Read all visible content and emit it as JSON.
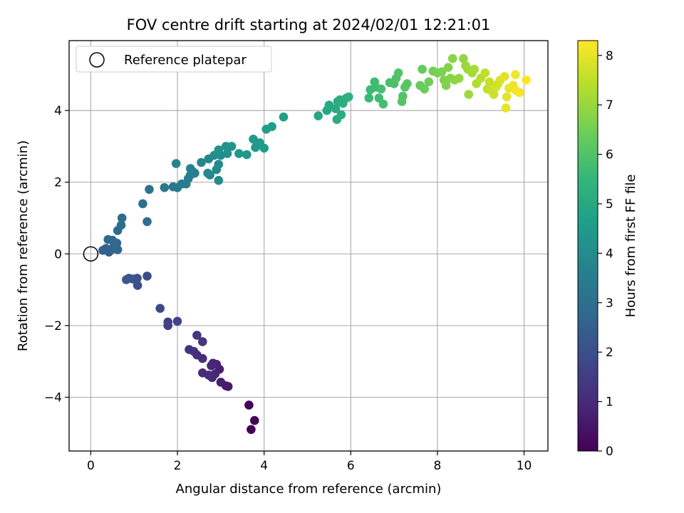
{
  "chart_data": {
    "type": "scatter",
    "title": "FOV centre drift starting at 2024/02/01 12:21:01",
    "xlabel": "Angular distance from reference (arcmin)",
    "ylabel": "Rotation from reference (arcmin)",
    "xlim": [
      -0.5,
      10.55
    ],
    "ylim": [
      -5.5,
      5.95
    ],
    "xticks": [
      0,
      2,
      4,
      6,
      8,
      10
    ],
    "xtick_labels": [
      "0",
      "2",
      "4",
      "6",
      "8",
      "10"
    ],
    "yticks": [
      -4,
      -2,
      0,
      2,
      4
    ],
    "ytick_labels": [
      "−4",
      "−2",
      "0",
      "2",
      "4"
    ],
    "grid": true,
    "legend": {
      "position": "top-left",
      "entries": [
        {
          "label": "Reference platepar",
          "marker": "open-circle",
          "x": 0,
          "y": 0
        }
      ]
    },
    "colorbar": {
      "label": "Hours from first FF file",
      "colormap": "viridis",
      "range": [
        0,
        8.3
      ],
      "ticks": [
        0,
        1,
        2,
        3,
        4,
        5,
        6,
        7,
        8
      ],
      "tick_labels": [
        "0",
        "1",
        "2",
        "3",
        "4",
        "5",
        "6",
        "7",
        "8"
      ],
      "colors": [
        "#440154",
        "#482878",
        "#3e4989",
        "#31688e",
        "#26828e",
        "#1f9e89",
        "#35b779",
        "#6ece58",
        "#b5de2b",
        "#fde725"
      ]
    },
    "series": [
      {
        "points": [
          [
            3.65,
            -4.22,
            0.05
          ],
          [
            3.78,
            -4.65,
            0.05
          ],
          [
            3.7,
            -4.9,
            0.0
          ],
          [
            3.17,
            -3.7,
            0.6
          ],
          [
            3.12,
            -3.68,
            0.65
          ],
          [
            3.0,
            -3.58,
            0.7
          ],
          [
            2.97,
            -3.22,
            0.75
          ],
          [
            2.9,
            -3.08,
            0.8
          ],
          [
            2.82,
            -3.05,
            0.85
          ],
          [
            2.78,
            -3.12,
            0.9
          ],
          [
            2.87,
            -3.35,
            0.9
          ],
          [
            2.8,
            -3.45,
            0.95
          ],
          [
            2.72,
            -3.38,
            1.0
          ],
          [
            2.58,
            -3.32,
            1.0
          ],
          [
            2.58,
            -2.92,
            1.05
          ],
          [
            2.45,
            -2.82,
            1.1
          ],
          [
            2.38,
            -2.72,
            1.15
          ],
          [
            2.27,
            -2.67,
            1.2
          ],
          [
            2.58,
            -2.45,
            1.3
          ],
          [
            2.45,
            -2.27,
            1.35
          ],
          [
            1.78,
            -2.0,
            1.6
          ],
          [
            1.78,
            -1.9,
            1.65
          ],
          [
            2.0,
            -1.88,
            1.7
          ],
          [
            1.6,
            -1.52,
            1.8
          ],
          [
            1.3,
            -0.62,
            2.0
          ],
          [
            1.08,
            -0.88,
            2.05
          ],
          [
            1.07,
            -0.68,
            2.1
          ],
          [
            0.97,
            -0.7,
            2.15
          ],
          [
            0.88,
            -0.68,
            2.2
          ],
          [
            0.82,
            -0.72,
            2.25
          ],
          [
            0.28,
            0.1,
            2.55
          ],
          [
            0.35,
            0.15,
            2.6
          ],
          [
            0.42,
            0.05,
            2.6
          ],
          [
            0.48,
            0.12,
            2.65
          ],
          [
            0.52,
            0.18,
            2.7
          ],
          [
            0.62,
            0.12,
            2.7
          ],
          [
            0.6,
            0.3,
            2.75
          ],
          [
            0.4,
            0.4,
            2.8
          ],
          [
            0.5,
            0.38,
            2.8
          ],
          [
            0.62,
            0.65,
            2.85
          ],
          [
            0.7,
            0.8,
            2.9
          ],
          [
            0.72,
            1.0,
            2.9
          ],
          [
            1.3,
            0.9,
            3.0
          ],
          [
            1.2,
            1.4,
            3.0
          ],
          [
            1.35,
            1.8,
            3.2
          ],
          [
            1.7,
            1.85,
            3.3
          ],
          [
            1.9,
            1.87,
            3.35
          ],
          [
            2.0,
            1.85,
            3.4
          ],
          [
            2.1,
            1.95,
            3.45
          ],
          [
            2.2,
            1.95,
            3.5
          ],
          [
            2.25,
            2.1,
            3.5
          ],
          [
            2.3,
            2.2,
            3.55
          ],
          [
            2.35,
            2.3,
            3.6
          ],
          [
            2.4,
            2.25,
            3.6
          ],
          [
            2.3,
            2.38,
            3.65
          ],
          [
            1.97,
            2.52,
            3.7
          ],
          [
            2.55,
            2.55,
            3.8
          ],
          [
            2.72,
            2.65,
            3.85
          ],
          [
            2.7,
            2.25,
            3.85
          ],
          [
            2.75,
            2.2,
            3.9
          ],
          [
            2.9,
            2.35,
            3.95
          ],
          [
            2.95,
            2.05,
            3.95
          ],
          [
            2.95,
            2.5,
            4.0
          ],
          [
            2.85,
            2.75,
            4.05
          ],
          [
            3.0,
            2.75,
            4.1
          ],
          [
            3.15,
            2.8,
            4.15
          ],
          [
            2.95,
            2.9,
            4.2
          ],
          [
            3.12,
            3.0,
            4.25
          ],
          [
            3.25,
            3.0,
            4.3
          ],
          [
            3.42,
            2.8,
            4.35
          ],
          [
            3.6,
            2.77,
            4.4
          ],
          [
            3.8,
            2.97,
            4.45
          ],
          [
            3.75,
            3.2,
            4.5
          ],
          [
            3.9,
            3.1,
            4.5
          ],
          [
            4.0,
            2.95,
            4.55
          ],
          [
            4.05,
            3.48,
            4.6
          ],
          [
            4.18,
            3.55,
            4.65
          ],
          [
            4.45,
            3.82,
            4.7
          ],
          [
            5.25,
            3.85,
            4.9
          ],
          [
            5.45,
            4.0,
            4.95
          ],
          [
            5.5,
            4.15,
            5.0
          ],
          [
            5.65,
            4.05,
            5.05
          ],
          [
            5.7,
            4.25,
            5.05
          ],
          [
            5.75,
            4.3,
            5.1
          ],
          [
            5.68,
            3.75,
            5.1
          ],
          [
            5.78,
            3.88,
            5.15
          ],
          [
            5.82,
            4.2,
            5.2
          ],
          [
            5.9,
            4.35,
            5.25
          ],
          [
            5.95,
            4.38,
            5.3
          ],
          [
            6.42,
            4.35,
            5.6
          ],
          [
            6.45,
            4.58,
            5.65
          ],
          [
            6.58,
            4.65,
            5.7
          ],
          [
            6.55,
            4.8,
            5.7
          ],
          [
            6.65,
            4.35,
            5.75
          ],
          [
            6.75,
            4.18,
            5.8
          ],
          [
            6.7,
            4.6,
            5.8
          ],
          [
            6.9,
            4.78,
            5.85
          ],
          [
            7.0,
            4.75,
            5.9
          ],
          [
            7.05,
            4.9,
            5.95
          ],
          [
            7.1,
            5.05,
            6.0
          ],
          [
            7.2,
            4.4,
            6.0
          ],
          [
            7.18,
            4.25,
            6.05
          ],
          [
            7.25,
            4.65,
            6.1
          ],
          [
            7.3,
            4.75,
            6.1
          ],
          [
            7.6,
            4.7,
            6.3
          ],
          [
            7.65,
            5.15,
            6.35
          ],
          [
            7.7,
            4.6,
            6.4
          ],
          [
            7.8,
            4.8,
            6.45
          ],
          [
            7.9,
            5.1,
            6.5
          ],
          [
            8.0,
            5.05,
            6.55
          ],
          [
            8.1,
            5.08,
            6.6
          ],
          [
            8.15,
            4.85,
            6.65
          ],
          [
            8.2,
            4.7,
            6.7
          ],
          [
            8.25,
            5.2,
            6.7
          ],
          [
            8.3,
            4.9,
            6.75
          ],
          [
            8.35,
            5.45,
            6.8
          ],
          [
            8.4,
            4.85,
            6.85
          ],
          [
            8.5,
            4.9,
            6.9
          ],
          [
            8.6,
            5.45,
            6.95
          ],
          [
            8.65,
            5.25,
            7.0
          ],
          [
            8.7,
            5.15,
            7.05
          ],
          [
            8.72,
            4.45,
            7.1
          ],
          [
            8.8,
            5.05,
            7.15
          ],
          [
            8.85,
            5.15,
            7.2
          ],
          [
            8.9,
            4.75,
            7.3
          ],
          [
            9.0,
            4.9,
            7.4
          ],
          [
            9.1,
            5.05,
            7.5
          ],
          [
            9.15,
            4.6,
            7.55
          ],
          [
            9.2,
            4.8,
            7.6
          ],
          [
            9.25,
            4.55,
            7.65
          ],
          [
            9.3,
            4.45,
            7.7
          ],
          [
            9.35,
            4.65,
            7.75
          ],
          [
            9.4,
            4.75,
            7.8
          ],
          [
            9.45,
            4.85,
            7.85
          ],
          [
            9.55,
            4.95,
            7.9
          ],
          [
            9.6,
            4.38,
            7.95
          ],
          [
            9.58,
            4.07,
            8.0
          ],
          [
            9.65,
            4.62,
            8.05
          ],
          [
            9.75,
            4.7,
            8.1
          ],
          [
            9.8,
            5.0,
            8.15
          ],
          [
            9.82,
            4.55,
            8.2
          ],
          [
            9.9,
            4.5,
            8.2
          ],
          [
            10.05,
            4.85,
            8.25
          ]
        ]
      }
    ]
  }
}
